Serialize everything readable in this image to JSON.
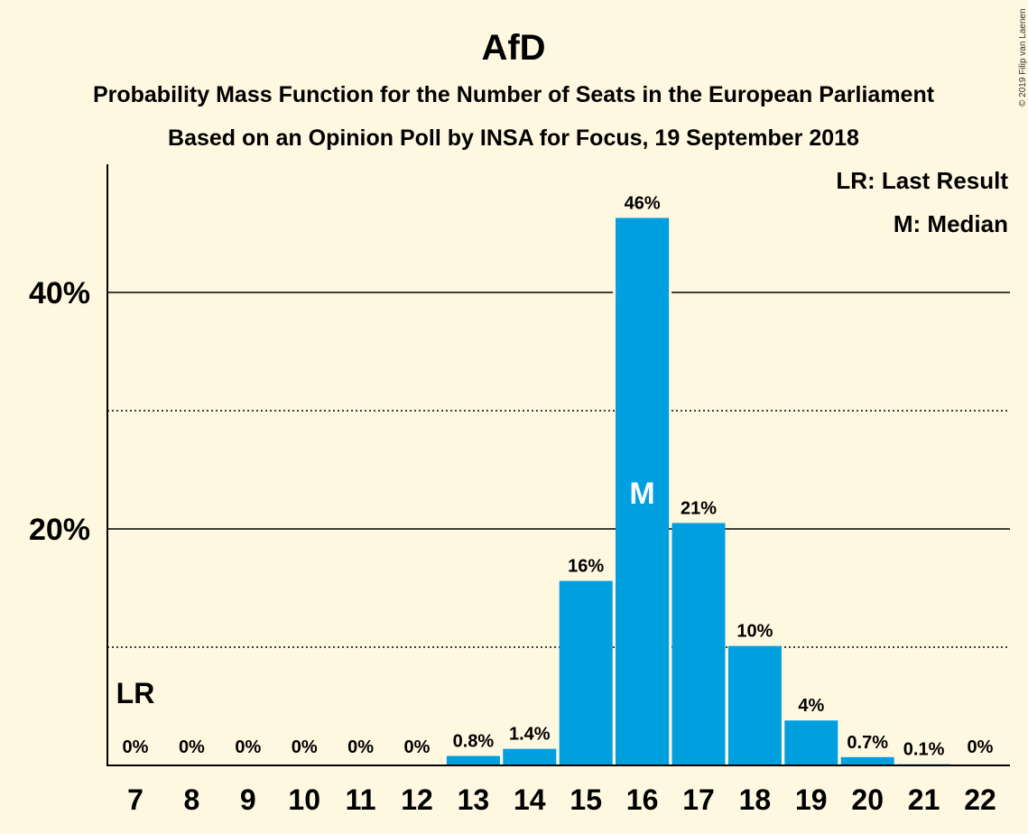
{
  "chart_data": {
    "type": "bar",
    "title": "AfD",
    "subtitle1": "Probability Mass Function for the Number of Seats in the European Parliament",
    "subtitle2": "Based on an Opinion Poll by INSA for Focus, 19 September 2018",
    "legend": [
      "LR: Last Result",
      "M: Median"
    ],
    "copyright": "© 2019 Filip van Laenen",
    "categories": [
      "7",
      "8",
      "9",
      "10",
      "11",
      "12",
      "13",
      "14",
      "15",
      "16",
      "17",
      "18",
      "19",
      "20",
      "21",
      "22"
    ],
    "values": [
      0,
      0,
      0,
      0,
      0,
      0,
      0.8,
      1.4,
      15.6,
      46.3,
      20.5,
      10.1,
      3.8,
      0.7,
      0.1,
      0
    ],
    "data_labels": [
      "0%",
      "0%",
      "0%",
      "0%",
      "0%",
      "0%",
      "0.8%",
      "1.4%",
      "16%",
      "46%",
      "21%",
      "10%",
      "4%",
      "0.7%",
      "0.1%",
      "0%"
    ],
    "yticks": [
      {
        "value": 20,
        "label": "20%"
      },
      {
        "value": 40,
        "label": "40%"
      }
    ],
    "minor_gridlines": [
      10,
      30
    ],
    "ylim": [
      0,
      50
    ],
    "median_category": "16",
    "median_marker": "M",
    "last_result_category": "7",
    "last_result_marker": "LR",
    "bar_color": "#009fe0",
    "legend_position": "top-right"
  }
}
